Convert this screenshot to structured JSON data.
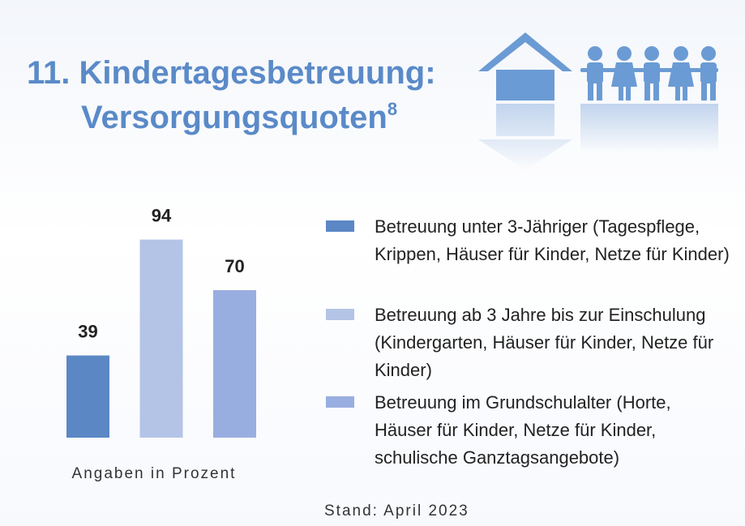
{
  "chart_data": {
    "type": "bar",
    "title": [
      "11. Kindertagesbetreuung:",
      "Versorgungsquoten"
    ],
    "title_footnote": "8",
    "categories": [
      null
    ],
    "series": [
      {
        "name": "Betreuung unter 3-Jähriger (Tagespflege, Krippen, Häuser für Kinder, Netze für Kinder)",
        "color": "#5b87c5",
        "values": [
          39
        ]
      },
      {
        "name": "Betreuung ab 3 Jahre bis zur Einschulung (Kindergarten, Häuser für Kinder, Netze für Kinder)",
        "color": "#b4c4e7",
        "values": [
          94
        ]
      },
      {
        "name": "Betreuung im Grundschulalter (Horte, Häuser für Kinder, Netze für Kinder, schulische Ganztagsangebote)",
        "color": "#99aee0",
        "values": [
          70
        ]
      }
    ],
    "note": "Angaben in Prozent",
    "source": "Stand: April 2023"
  }
}
